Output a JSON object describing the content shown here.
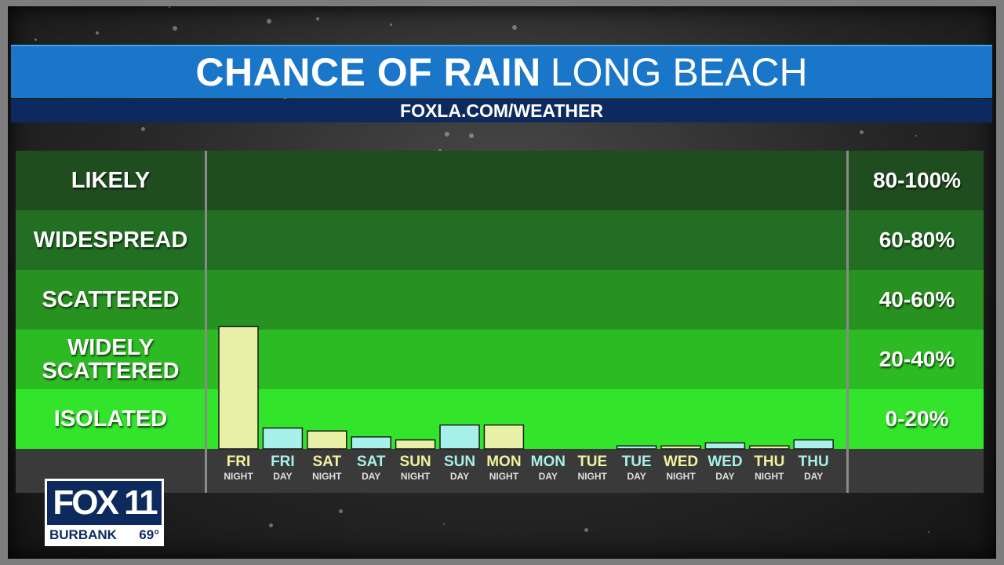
{
  "header": {
    "title_strong": "CHANCE OF RAIN",
    "title_light": "LONG BEACH",
    "subtitle": "FOXLA.COM/WEATHER"
  },
  "chart_data": {
    "type": "bar",
    "title": "CHANCE OF RAIN LONG BEACH",
    "ylim": [
      0,
      100
    ],
    "bands": [
      {
        "label": "LIKELY",
        "range": "80-100%",
        "lo": 80,
        "hi": 100,
        "color": "#1f4d1f"
      },
      {
        "label": "WIDESPREAD",
        "range": "60-80%",
        "lo": 60,
        "hi": 80,
        "color": "#226e22"
      },
      {
        "label": "SCATTERED",
        "range": "40-60%",
        "lo": 40,
        "hi": 60,
        "color": "#27921f"
      },
      {
        "label": "WIDELY SCATTERED",
        "range": "20-40%",
        "lo": 20,
        "hi": 40,
        "color": "#2cbb22"
      },
      {
        "label": "ISOLATED",
        "range": "0-20%",
        "lo": 0,
        "hi": 20,
        "color": "#33e52a"
      }
    ],
    "categories": [
      {
        "day": "FRI",
        "period": "NIGHT",
        "value": 41
      },
      {
        "day": "FRI",
        "period": "DAY",
        "value": 7
      },
      {
        "day": "SAT",
        "period": "NIGHT",
        "value": 6
      },
      {
        "day": "SAT",
        "period": "DAY",
        "value": 4
      },
      {
        "day": "SUN",
        "period": "NIGHT",
        "value": 3
      },
      {
        "day": "SUN",
        "period": "DAY",
        "value": 8
      },
      {
        "day": "MON",
        "period": "NIGHT",
        "value": 8
      },
      {
        "day": "MON",
        "period": "DAY",
        "value": 0
      },
      {
        "day": "TUE",
        "period": "NIGHT",
        "value": 0
      },
      {
        "day": "TUE",
        "period": "DAY",
        "value": 1
      },
      {
        "day": "WED",
        "period": "NIGHT",
        "value": 1
      },
      {
        "day": "WED",
        "period": "DAY",
        "value": 2
      },
      {
        "day": "THU",
        "period": "NIGHT",
        "value": 1
      },
      {
        "day": "THU",
        "period": "DAY",
        "value": 3
      }
    ],
    "colors": {
      "night_bar": "#e8f0a8",
      "day_bar": "#a8f0ea",
      "night_text": "#f2f2a0",
      "day_text": "#a8f0ea"
    }
  },
  "logo": {
    "brand": "FOX 11",
    "city": "BURBANK",
    "temp": "69°"
  }
}
